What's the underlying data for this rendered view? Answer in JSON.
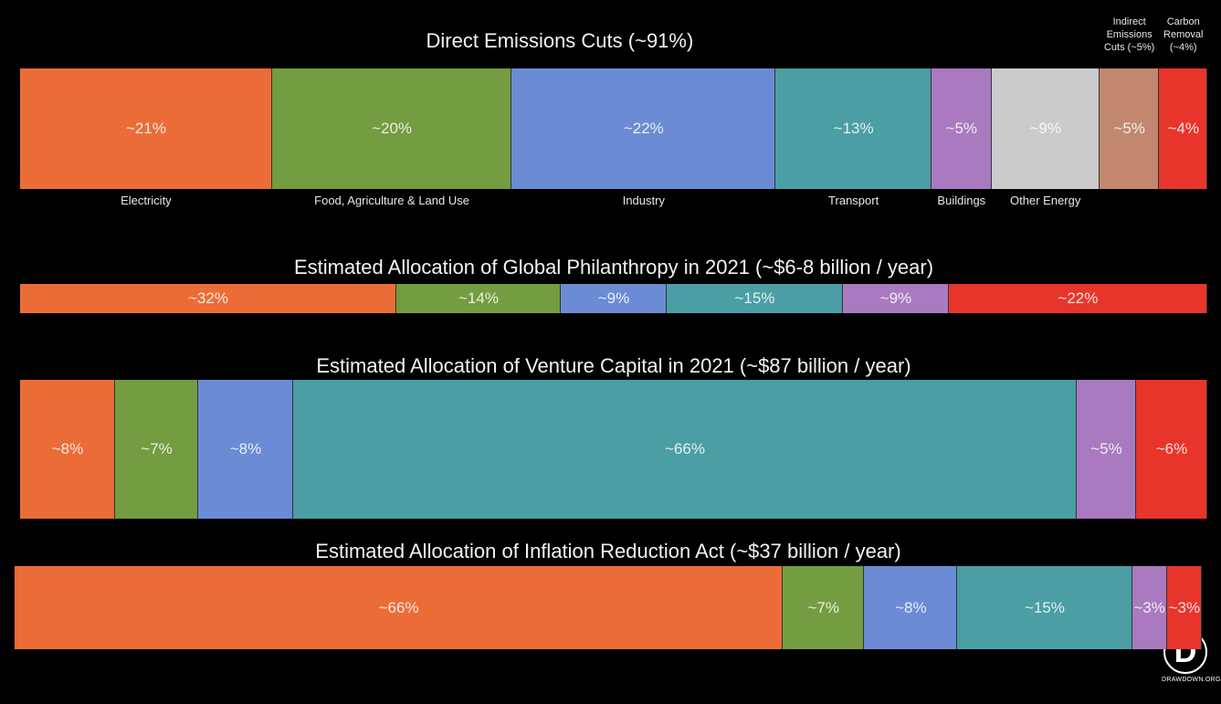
{
  "chart_data": [
    {
      "type": "bar",
      "stacked": true,
      "orientation": "horizontal",
      "title": "Direct Emissions Cuts (~91%)",
      "categories": [
        "Electricity",
        "Food, Agriculture & Land Use",
        "Industry",
        "Transport",
        "Buildings",
        "Other Energy",
        "Indirect\nEmissions\nCuts (~5%)",
        "Carbon\nRemoval\n(~4%)"
      ],
      "values": [
        21,
        20,
        22,
        13,
        5,
        9,
        5,
        4
      ],
      "value_labels": [
        "~21%",
        "~20%",
        "~22%",
        "~13%",
        "~5%",
        "~9%",
        "~5%",
        "~4%"
      ],
      "colors": [
        "#ec6c37",
        "#749c40",
        "#6c8bd5",
        "#4b9ea4",
        "#a97abf",
        "#cbcbcb",
        "#c2876f",
        "#e8352b"
      ]
    },
    {
      "type": "bar",
      "stacked": true,
      "orientation": "horizontal",
      "title": "Estimated Allocation of Global Philanthropy in 2021 (~$6-8 billion / year)",
      "values": [
        32,
        14,
        9,
        15,
        9,
        22
      ],
      "value_labels": [
        "~32%",
        "~14%",
        "~9%",
        "~15%",
        "~9%",
        "~22%"
      ],
      "colors": [
        "#ec6c37",
        "#749c40",
        "#6c8bd5",
        "#4b9ea4",
        "#a97abf",
        "#e8352b"
      ]
    },
    {
      "type": "bar",
      "stacked": true,
      "orientation": "horizontal",
      "title": "Estimated Allocation of Venture Capital in 2021 (~$87 billion / year)",
      "values": [
        8,
        7,
        8,
        66,
        5,
        6
      ],
      "value_labels": [
        "~8%",
        "~7%",
        "~8%",
        "~66%",
        "~5%",
        "~6%"
      ],
      "colors": [
        "#ec6c37",
        "#749c40",
        "#6c8bd5",
        "#4b9ea4",
        "#a97abf",
        "#e8352b"
      ]
    },
    {
      "type": "bar",
      "stacked": true,
      "orientation": "horizontal",
      "title": "Estimated Allocation of Inflation Reduction Act (~$37 billion / year)",
      "values": [
        66,
        7,
        8,
        15,
        3,
        3
      ],
      "value_labels": [
        "~66%",
        "~7%",
        "~8%",
        "~15%",
        "~3%",
        "~3%"
      ],
      "colors": [
        "#ec6c37",
        "#749c40",
        "#6c8bd5",
        "#4b9ea4",
        "#a97abf",
        "#e8352b"
      ]
    }
  ],
  "logo": {
    "letter": "D",
    "text": "DRAWDOWN.ORG"
  }
}
